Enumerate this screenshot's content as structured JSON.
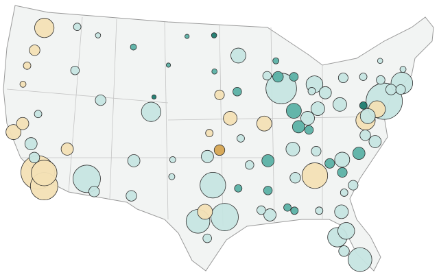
{
  "points": [
    {
      "lon": -118.2,
      "lat": 34.0,
      "value": 600,
      "color": "#f3e0b5"
    },
    {
      "lon": -117.1,
      "lat": 32.7,
      "value": 400,
      "color": "#f3e0b5"
    },
    {
      "lon": -117.4,
      "lat": 33.95,
      "value": 350,
      "color": "#f3e0b5"
    },
    {
      "lon": -122.4,
      "lat": 37.8,
      "value": 120,
      "color": "#f3e0b5"
    },
    {
      "lon": -121.5,
      "lat": 38.6,
      "value": 80,
      "color": "#f3e0b5"
    },
    {
      "lon": -122.3,
      "lat": 47.6,
      "value": 200,
      "color": "#f3e0b5"
    },
    {
      "lon": -122.7,
      "lat": 45.5,
      "value": 60,
      "color": "#f3e0b5"
    },
    {
      "lon": -112.1,
      "lat": 33.4,
      "value": 400,
      "color": "#c6e5e1"
    },
    {
      "lon": -115.1,
      "lat": 36.2,
      "value": 80,
      "color": "#f3e0b5"
    },
    {
      "lon": -105.0,
      "lat": 39.7,
      "value": 200,
      "color": "#c6e5e1"
    },
    {
      "lon": -111.9,
      "lat": 40.8,
      "value": 60,
      "color": "#c6e5e1"
    },
    {
      "lon": -96.8,
      "lat": 32.8,
      "value": 350,
      "color": "#c6e5e1"
    },
    {
      "lon": -95.4,
      "lat": 29.8,
      "value": 400,
      "color": "#c6e5e1"
    },
    {
      "lon": -98.5,
      "lat": 29.4,
      "value": 300,
      "color": "#c6e5e1"
    },
    {
      "lon": -97.7,
      "lat": 30.3,
      "value": 120,
      "color": "#f3e0b5"
    },
    {
      "lon": -87.6,
      "lat": 41.9,
      "value": 500,
      "color": "#c6e5e1"
    },
    {
      "lon": -83.0,
      "lat": 42.3,
      "value": 150,
      "color": "#c6e5e1"
    },
    {
      "lon": -74.0,
      "lat": 40.7,
      "value": 700,
      "color": "#c6e5e1"
    },
    {
      "lon": -75.2,
      "lat": 39.95,
      "value": 150,
      "color": "#f3e0b5"
    },
    {
      "lon": -71.0,
      "lat": 42.4,
      "value": 250,
      "color": "#c6e5e1"
    },
    {
      "lon": -84.4,
      "lat": 33.7,
      "value": 350,
      "color": "#f3e0b5"
    },
    {
      "lon": -80.2,
      "lat": 25.8,
      "value": 300,
      "color": "#c6e5e1"
    },
    {
      "lon": -82.5,
      "lat": 27.9,
      "value": 200,
      "color": "#c6e5e1"
    },
    {
      "lon": -81.4,
      "lat": 28.5,
      "value": 150,
      "color": "#c6e5e1"
    },
    {
      "lon": -81.7,
      "lat": 30.3,
      "value": 100,
      "color": "#c6e5e1"
    },
    {
      "lon": -80.8,
      "lat": 35.2,
      "value": 120,
      "color": "#c6e5e1"
    },
    {
      "lon": -77.0,
      "lat": 38.9,
      "value": 200,
      "color": "#f3e0b5"
    },
    {
      "lon": -76.6,
      "lat": 39.3,
      "value": 120,
      "color": "#c6e5e1"
    },
    {
      "lon": -93.3,
      "lat": 45.0,
      "value": 120,
      "color": "#c6e5e1"
    },
    {
      "lon": -90.2,
      "lat": 38.6,
      "value": 120,
      "color": "#f3e0b5"
    },
    {
      "lon": -94.6,
      "lat": 39.1,
      "value": 100,
      "color": "#f3e0b5"
    },
    {
      "lon": -86.2,
      "lat": 39.8,
      "value": 120,
      "color": "#5bb1a5"
    },
    {
      "lon": -83.0,
      "lat": 40.0,
      "value": 100,
      "color": "#c6e5e1"
    },
    {
      "lon": -81.7,
      "lat": 41.5,
      "value": 80,
      "color": "#c6e5e1"
    },
    {
      "lon": -80.0,
      "lat": 40.4,
      "value": 100,
      "color": "#c6e5e1"
    },
    {
      "lon": -86.8,
      "lat": 36.2,
      "value": 100,
      "color": "#c6e5e1"
    },
    {
      "lon": -90.0,
      "lat": 35.1,
      "value": 80,
      "color": "#5bb1a5"
    },
    {
      "lon": -97.5,
      "lat": 35.5,
      "value": 80,
      "color": "#c6e5e1"
    },
    {
      "lon": -96.0,
      "lat": 36.1,
      "value": 60,
      "color": "#d6a552"
    },
    {
      "lon": -90.1,
      "lat": 30.0,
      "value": 80,
      "color": "#c6e5e1"
    },
    {
      "lon": -106.6,
      "lat": 35.1,
      "value": 80,
      "color": "#c6e5e1"
    },
    {
      "lon": -106.5,
      "lat": 31.8,
      "value": 60,
      "color": "#c6e5e1"
    },
    {
      "lon": -111.0,
      "lat": 32.2,
      "value": 60,
      "color": "#c6e5e1"
    },
    {
      "lon": -78.6,
      "lat": 35.8,
      "value": 80,
      "color": "#5bb1a5"
    },
    {
      "lon": -77.4,
      "lat": 37.5,
      "value": 60,
      "color": "#c6e5e1"
    },
    {
      "lon": -78.9,
      "lat": 42.9,
      "value": 50,
      "color": "#c6e5e1"
    },
    {
      "lon": -87.9,
      "lat": 43.0,
      "value": 60,
      "color": "#5bb1a5"
    },
    {
      "lon": -96.0,
      "lat": 41.3,
      "value": 50,
      "color": "#f3e0b5"
    },
    {
      "lon": -116.2,
      "lat": 43.6,
      "value": 40,
      "color": "#c6e5e1"
    },
    {
      "lon": -117.4,
      "lat": 47.7,
      "value": 30,
      "color": "#c6e5e1"
    },
    {
      "lon": -119.8,
      "lat": 36.7,
      "value": 80,
      "color": "#c6e5e1"
    },
    {
      "lon": -85.8,
      "lat": 38.3,
      "value": 80,
      "color": "#5bb1a5"
    },
    {
      "lon": -84.5,
      "lat": 39.1,
      "value": 100,
      "color": "#c6e5e1"
    },
    {
      "lon": -86.8,
      "lat": 33.5,
      "value": 60,
      "color": "#c6e5e1"
    },
    {
      "lon": -90.2,
      "lat": 32.3,
      "value": 40,
      "color": "#5bb1a5"
    },
    {
      "lon": -79.9,
      "lat": 32.8,
      "value": 50,
      "color": "#c6e5e1"
    },
    {
      "lon": -76.3,
      "lat": 36.9,
      "value": 80,
      "color": "#c6e5e1"
    },
    {
      "lon": -72.7,
      "lat": 41.8,
      "value": 60,
      "color": "#c6e5e1"
    },
    {
      "lon": -71.4,
      "lat": 41.8,
      "value": 50,
      "color": "#c6e5e1"
    },
    {
      "lon": -73.8,
      "lat": 42.7,
      "value": 40,
      "color": "#c6e5e1"
    },
    {
      "lon": -108.5,
      "lat": 45.8,
      "value": 20,
      "color": "#5bb1a5"
    },
    {
      "lon": -97.3,
      "lat": 37.7,
      "value": 30,
      "color": "#f3e0b5"
    },
    {
      "lon": -92.3,
      "lat": 34.7,
      "value": 40,
      "color": "#c6e5e1"
    },
    {
      "lon": -93.75,
      "lat": 32.5,
      "value": 30,
      "color": "#5bb1a5"
    },
    {
      "lon": -97.4,
      "lat": 27.8,
      "value": 40,
      "color": "#c6e5e1"
    },
    {
      "lon": -101.8,
      "lat": 33.6,
      "value": 20,
      "color": "#c6e5e1"
    },
    {
      "lon": -101.8,
      "lat": 35.2,
      "value": 20,
      "color": "#c6e5e1"
    },
    {
      "lon": -119.8,
      "lat": 39.5,
      "value": 30,
      "color": "#c6e5e1"
    },
    {
      "lon": -96.8,
      "lat": 46.9,
      "value": 15,
      "color": "#1c7b6f"
    },
    {
      "lon": -96.7,
      "lat": 43.5,
      "value": 15,
      "color": "#5bb1a5"
    },
    {
      "lon": -93.6,
      "lat": 41.6,
      "value": 40,
      "color": "#5bb1a5"
    },
    {
      "lon": -89.4,
      "lat": 43.1,
      "value": 40,
      "color": "#c6e5e1"
    },
    {
      "lon": -88.0,
      "lat": 44.5,
      "value": 20,
      "color": "#5bb1a5"
    },
    {
      "lon": -85.7,
      "lat": 43.0,
      "value": 40,
      "color": "#5bb1a5"
    },
    {
      "lon": -83.9,
      "lat": 36.0,
      "value": 50,
      "color": "#c6e5e1"
    },
    {
      "lon": -82.4,
      "lat": 34.85,
      "value": 50,
      "color": "#5bb1a5"
    },
    {
      "lon": -81.0,
      "lat": 34.0,
      "value": 50,
      "color": "#5bb1a5"
    },
    {
      "lon": -81.1,
      "lat": 32.1,
      "value": 30,
      "color": "#c6e5e1"
    },
    {
      "lon": -88.0,
      "lat": 30.7,
      "value": 30,
      "color": "#5bb1a5"
    },
    {
      "lon": -91.1,
      "lat": 30.45,
      "value": 40,
      "color": "#c6e5e1"
    },
    {
      "lon": -70.3,
      "lat": 43.7,
      "value": 20,
      "color": "#c6e5e1"
    },
    {
      "lon": -73.2,
      "lat": 44.5,
      "value": 15,
      "color": "#c6e5e1"
    },
    {
      "lon": -104.8,
      "lat": 41.1,
      "value": 10,
      "color": "#1c7b6f"
    },
    {
      "lon": -103.2,
      "lat": 44.1,
      "value": 10,
      "color": "#5bb1a5"
    },
    {
      "lon": -100.8,
      "lat": 46.8,
      "value": 10,
      "color": "#5bb1a5"
    },
    {
      "lon": -114.0,
      "lat": 46.9,
      "value": 15,
      "color": "#c6e5e1"
    },
    {
      "lon": -122.9,
      "lat": 42.3,
      "value": 20,
      "color": "#f3e0b5"
    },
    {
      "lon": -123.1,
      "lat": 44.05,
      "value": 30,
      "color": "#f3e0b5"
    },
    {
      "lon": -119.0,
      "lat": 35.4,
      "value": 60,
      "color": "#c6e5e1"
    },
    {
      "lon": -93.3,
      "lat": 37.2,
      "value": 30,
      "color": "#c6e5e1"
    },
    {
      "lon": -84.5,
      "lat": 38.0,
      "value": 40,
      "color": "#5bb1a5"
    },
    {
      "lon": -83.5,
      "lat": 41.65,
      "value": 30,
      "color": "#c6e5e1"
    },
    {
      "lon": -76.1,
      "lat": 43.0,
      "value": 30,
      "color": "#c6e5e1"
    },
    {
      "lon": -76.9,
      "lat": 40.3,
      "value": 30,
      "color": "#1c7b6f"
    },
    {
      "lon": -81.9,
      "lat": 26.6,
      "value": 60,
      "color": "#c6e5e1"
    },
    {
      "lon": -84.3,
      "lat": 30.4,
      "value": 30,
      "color": "#c6e5e1"
    },
    {
      "lon": -87.2,
      "lat": 30.4,
      "value": 30,
      "color": "#5bb1a5"
    }
  ]
}
